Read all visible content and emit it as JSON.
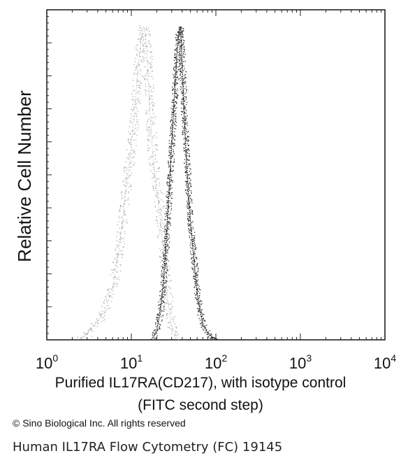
{
  "chart_data": {
    "type": "line",
    "title": "",
    "xlabel": "Purified  IL17RA(CD217), with isotype control",
    "xlabel_line2": "(FITC second step)",
    "ylabel": "Relative Cell Number",
    "x_scale": "log",
    "xlim": [
      1,
      10000
    ],
    "x_ticks": [
      {
        "value": 1,
        "base": "10",
        "exp": "0"
      },
      {
        "value": 10,
        "base": "10",
        "exp": "1"
      },
      {
        "value": 100,
        "base": "10",
        "exp": "2"
      },
      {
        "value": 1000,
        "base": "10",
        "exp": "3"
      },
      {
        "value": 10000,
        "base": "10",
        "exp": "4"
      }
    ],
    "ylim": [
      0,
      100
    ],
    "grid": false,
    "legend": "none",
    "series": [
      {
        "style": "dotted-light",
        "color": "#8a8a8a",
        "x": [
          2.5,
          3,
          4,
          5,
          6,
          7,
          8,
          9,
          10,
          11,
          12,
          13,
          14,
          15,
          16,
          17,
          18,
          20,
          22,
          24,
          26,
          28,
          30,
          35
        ],
        "y": [
          0.5,
          2,
          6,
          10,
          17,
          27,
          40,
          52,
          62,
          74,
          87,
          96,
          100,
          95,
          80,
          68,
          58,
          48,
          38,
          28,
          17,
          9,
          4,
          0.5
        ]
      },
      {
        "style": "dense-dark",
        "color": "#1a1a1a",
        "x": [
          18,
          20,
          22,
          24,
          26,
          28,
          30,
          32,
          34,
          36,
          38,
          40,
          42,
          45,
          48,
          52,
          56,
          60,
          65,
          70,
          80,
          90,
          100
        ],
        "y": [
          0.5,
          3,
          9,
          19,
          33,
          48,
          62,
          76,
          88,
          97,
          100,
          88,
          72,
          57,
          44,
          33,
          23,
          15,
          9,
          5,
          2,
          1,
          0.3
        ]
      }
    ]
  },
  "copyright": "© Sino Biological Inc. All rights reserved",
  "caption": "Human IL17RA Flow Cytometry (FC) 19145"
}
